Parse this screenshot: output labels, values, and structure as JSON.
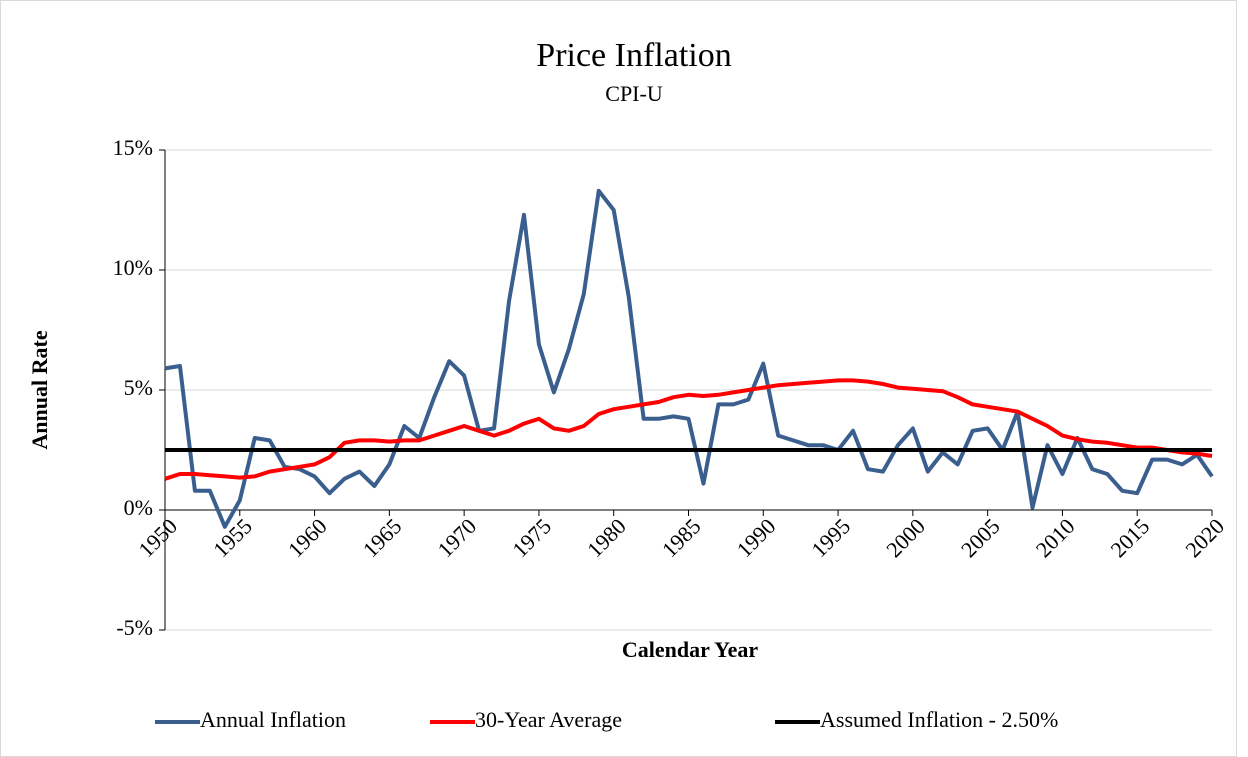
{
  "chart_data": {
    "type": "line",
    "title": "Price Inflation",
    "subtitle": "CPI-U",
    "x_label": "Calendar Year",
    "y_label": "Annual Rate",
    "x": [
      1950,
      1951,
      1952,
      1953,
      1954,
      1955,
      1956,
      1957,
      1958,
      1959,
      1960,
      1961,
      1962,
      1963,
      1964,
      1965,
      1966,
      1967,
      1968,
      1969,
      1970,
      1971,
      1972,
      1973,
      1974,
      1975,
      1976,
      1977,
      1978,
      1979,
      1980,
      1981,
      1982,
      1983,
      1984,
      1985,
      1986,
      1987,
      1988,
      1989,
      1990,
      1991,
      1992,
      1993,
      1994,
      1995,
      1996,
      1997,
      1998,
      1999,
      2000,
      2001,
      2002,
      2003,
      2004,
      2005,
      2006,
      2007,
      2008,
      2009,
      2010,
      2011,
      2012,
      2013,
      2014,
      2015,
      2016,
      2017,
      2018,
      2019,
      2020
    ],
    "series": [
      {
        "name": "Annual Inflation",
        "color": "#3a5f8f",
        "values": [
          5.9,
          6.0,
          0.8,
          0.8,
          -0.7,
          0.4,
          3.0,
          2.9,
          1.8,
          1.7,
          1.4,
          0.7,
          1.3,
          1.6,
          1.0,
          1.9,
          3.5,
          3.0,
          4.7,
          6.2,
          5.6,
          3.3,
          3.4,
          8.7,
          12.3,
          6.9,
          4.9,
          6.7,
          9.0,
          13.3,
          12.5,
          8.9,
          3.8,
          3.8,
          3.9,
          3.8,
          1.1,
          4.4,
          4.4,
          4.6,
          6.1,
          3.1,
          2.9,
          2.7,
          2.7,
          2.5,
          3.3,
          1.7,
          1.6,
          2.7,
          3.4,
          1.6,
          2.4,
          1.9,
          3.3,
          3.4,
          2.5,
          4.1,
          0.1,
          2.7,
          1.5,
          3.0,
          1.7,
          1.5,
          0.8,
          0.7,
          2.1,
          2.1,
          1.9,
          2.3,
          1.4
        ]
      },
      {
        "name": "30-Year Average",
        "color": "#ff0000",
        "values": [
          1.3,
          1.5,
          1.5,
          1.45,
          1.4,
          1.35,
          1.4,
          1.6,
          1.7,
          1.8,
          1.9,
          2.2,
          2.8,
          2.9,
          2.9,
          2.85,
          2.9,
          2.9,
          3.1,
          3.3,
          3.5,
          3.3,
          3.1,
          3.3,
          3.6,
          3.8,
          3.4,
          3.3,
          3.5,
          4.0,
          4.2,
          4.3,
          4.4,
          4.5,
          4.7,
          4.8,
          4.75,
          4.8,
          4.9,
          5.0,
          5.1,
          5.2,
          5.25,
          5.3,
          5.35,
          5.4,
          5.4,
          5.35,
          5.25,
          5.1,
          5.05,
          5.0,
          4.95,
          4.7,
          4.4,
          4.3,
          4.2,
          4.1,
          3.8,
          3.5,
          3.1,
          2.95,
          2.85,
          2.8,
          2.7,
          2.6,
          2.6,
          2.5,
          2.4,
          2.35,
          2.25
        ]
      },
      {
        "name": "Assumed Inflation - 2.50%",
        "color": "#000000",
        "x": [
          1950,
          2020
        ],
        "values": [
          2.5,
          2.5
        ]
      }
    ],
    "xlim": [
      1950,
      2020
    ],
    "xticks": [
      1950,
      1955,
      1960,
      1965,
      1970,
      1975,
      1980,
      1985,
      1990,
      1995,
      2000,
      2005,
      2010,
      2015,
      2020
    ],
    "ylim": [
      -5,
      15
    ],
    "yticks": [
      {
        "value": -5,
        "label": "-5%"
      },
      {
        "value": 0,
        "label": "0%"
      },
      {
        "value": 5,
        "label": "5%"
      },
      {
        "value": 10,
        "label": "10%"
      },
      {
        "value": 15,
        "label": "15%"
      }
    ],
    "grid": true,
    "legend": "bottom"
  }
}
